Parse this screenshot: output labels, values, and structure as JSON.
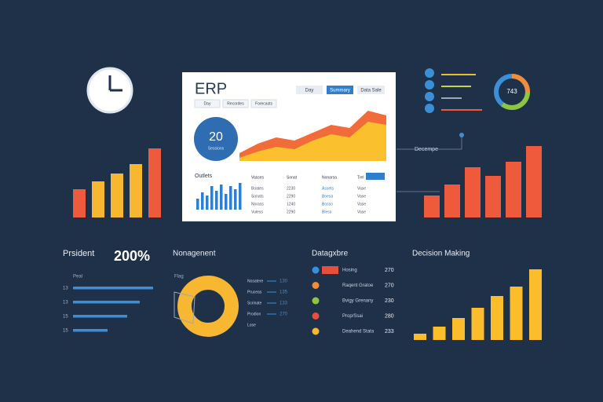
{
  "panel": {
    "title": "ERP",
    "buttons": [
      "Day",
      "Summary",
      "Data Sale"
    ],
    "tabs": [
      "Day",
      "Recordes",
      "Forecasts"
    ],
    "kpi": "20",
    "kpi_caption": "Sessions",
    "section": "Outlets",
    "area": {
      "orange": [
        10,
        22,
        30,
        26,
        36,
        46,
        42,
        64,
        58
      ],
      "yellow": [
        4,
        12,
        18,
        15,
        26,
        34,
        30,
        50,
        46
      ]
    },
    "mini_bars": [
      14,
      22,
      18,
      30,
      24,
      32,
      20,
      30,
      26,
      34
    ],
    "table": {
      "header": [
        "Vasses",
        "Sonat",
        "Nonarsa",
        "Trel"
      ],
      "rows": [
        [
          "Boates",
          "2230",
          "Assets",
          "Vase"
        ],
        [
          "Sonats",
          "2290",
          "Boesa",
          "Vase"
        ],
        [
          "Norass",
          "1240",
          "Bosso",
          "Vase"
        ],
        [
          "Vuless",
          "2290",
          "Bless",
          "Vase"
        ]
      ]
    }
  },
  "left_bars": {
    "values": [
      36,
      46,
      56,
      68,
      88
    ],
    "colors": [
      "#f05a3c",
      "#f7b731",
      "#f7b731",
      "#f7b731",
      "#f05a3c"
    ]
  },
  "right_bars": {
    "values": [
      28,
      42,
      64,
      53,
      71,
      91
    ],
    "colors": [
      "#f05a3c",
      "#f05a3c",
      "#f05a3c",
      "#f05a3c",
      "#f05a3c",
      "#f05a3c"
    ]
  },
  "right_label": "Decempe",
  "right_donut": "743",
  "president": {
    "title": "Prsident",
    "kpi": "200%",
    "axis_label": "Peal",
    "rows": [
      {
        "label": "13",
        "value": 102
      },
      {
        "label": "13",
        "value": 85
      },
      {
        "label": "15",
        "value": 69
      },
      {
        "label": "15",
        "value": 44
      }
    ]
  },
  "management": {
    "title": "Nonagenent",
    "caption": "Flag",
    "legend": [
      {
        "label": "Nosatere",
        "value": "130"
      },
      {
        "label": "Pruceas",
        "value": "135"
      },
      {
        "label": "Scrinate",
        "value": "133"
      },
      {
        "label": "Prodion",
        "value": "270"
      },
      {
        "label": "Lose"
      }
    ]
  },
  "datagxbre": {
    "title": "Datagxbre",
    "rows": [
      {
        "label": "Hosing",
        "value": "270",
        "color": "#3b8fd6"
      },
      {
        "label": "Raqent Gratoe",
        "value": "270",
        "color": "#f28c38"
      },
      {
        "label": "Bvigy Grenany",
        "value": "230",
        "color": "#8dc63f"
      },
      {
        "label": "Prop/Ssai",
        "value": "280",
        "color": "#e94e3c"
      },
      {
        "label": "Deahend Stata",
        "value": "233",
        "color": "#f7b731"
      }
    ]
  },
  "decision": {
    "title": "Decision Making",
    "values": [
      8,
      17,
      28,
      41,
      56,
      68,
      90
    ]
  }
}
